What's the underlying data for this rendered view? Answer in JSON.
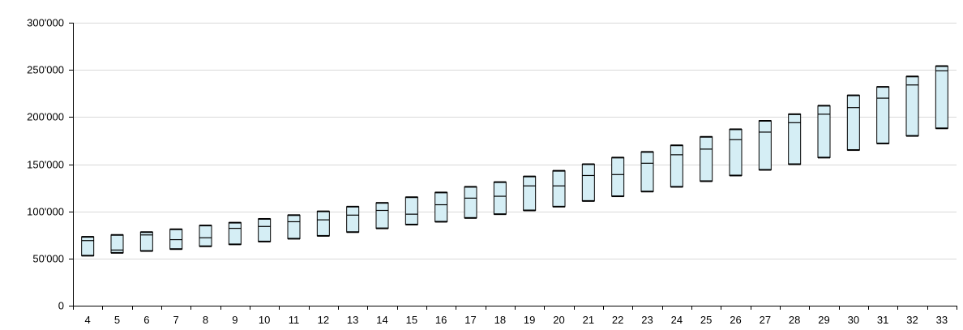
{
  "chart_data": {
    "type": "box",
    "categories": [
      "4",
      "5",
      "6",
      "7",
      "8",
      "9",
      "10",
      "11",
      "12",
      "13",
      "14",
      "15",
      "16",
      "17",
      "18",
      "19",
      "20",
      "21",
      "22",
      "23",
      "24",
      "25",
      "26",
      "27",
      "28",
      "29",
      "30",
      "31",
      "32",
      "33"
    ],
    "y_tick_labels": [
      "0",
      "50'000",
      "100'000",
      "150'000",
      "200'000",
      "250'000",
      "300'000"
    ],
    "y_ticks": [
      0,
      50000,
      100000,
      150000,
      200000,
      250000,
      300000
    ],
    "ylim": [
      0,
      300000
    ],
    "grid": true,
    "box_fill": "#d5eef5",
    "box_stroke": "#000000",
    "gridline_color": "#d9d9d9",
    "boxes": [
      {
        "low": 53000,
        "high": 73000,
        "mid": 69000
      },
      {
        "low": 56000,
        "high": 75000,
        "mid": 59000
      },
      {
        "low": 58000,
        "high": 78000,
        "mid": 75000
      },
      {
        "low": 60000,
        "high": 81000,
        "mid": 70000
      },
      {
        "low": 63000,
        "high": 85000,
        "mid": 72000
      },
      {
        "low": 65000,
        "high": 88000,
        "mid": 82000
      },
      {
        "low": 68000,
        "high": 92000,
        "mid": 84000
      },
      {
        "low": 71000,
        "high": 96000,
        "mid": 89000
      },
      {
        "low": 74000,
        "high": 100000,
        "mid": 91000
      },
      {
        "low": 78000,
        "high": 105000,
        "mid": 96000
      },
      {
        "low": 82000,
        "high": 109000,
        "mid": 101000
      },
      {
        "low": 86000,
        "high": 115000,
        "mid": 97000
      },
      {
        "low": 89000,
        "high": 120000,
        "mid": 107000
      },
      {
        "low": 93000,
        "high": 126000,
        "mid": 114000
      },
      {
        "low": 97000,
        "high": 131000,
        "mid": 116000
      },
      {
        "low": 101000,
        "high": 137000,
        "mid": 127000
      },
      {
        "low": 105000,
        "high": 143000,
        "mid": 127000
      },
      {
        "low": 111000,
        "high": 150000,
        "mid": 138000
      },
      {
        "low": 116000,
        "high": 157000,
        "mid": 139000
      },
      {
        "low": 121000,
        "high": 163000,
        "mid": 151000
      },
      {
        "low": 126000,
        "high": 170000,
        "mid": 160000
      },
      {
        "low": 132000,
        "high": 179000,
        "mid": 166000
      },
      {
        "low": 138000,
        "high": 187000,
        "mid": 176000
      },
      {
        "low": 144000,
        "high": 196000,
        "mid": 184000
      },
      {
        "low": 150000,
        "high": 203000,
        "mid": 194000
      },
      {
        "low": 157000,
        "high": 212000,
        "mid": 203000
      },
      {
        "low": 165000,
        "high": 223000,
        "mid": 210000
      },
      {
        "low": 172000,
        "high": 232000,
        "mid": 220000
      },
      {
        "low": 180000,
        "high": 243000,
        "mid": 234000
      },
      {
        "low": 188000,
        "high": 254000,
        "mid": 249000
      }
    ]
  }
}
